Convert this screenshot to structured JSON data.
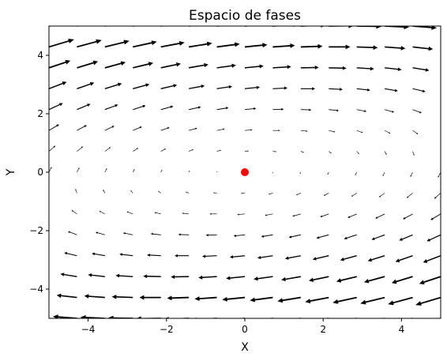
{
  "chart_data": {
    "type": "quiver",
    "title": "Espacio de fases",
    "xlabel": "X",
    "ylabel": "Y",
    "xlim": [
      -5,
      5
    ],
    "ylim": [
      -5,
      5
    ],
    "x_ticks": [
      -4,
      -2,
      0,
      2,
      4
    ],
    "y_ticks": [
      -4,
      -2,
      0,
      2,
      4
    ],
    "x_tick_labels": [
      "−4",
      "−2",
      "0",
      "2",
      "4"
    ],
    "y_tick_labels": [
      "−4",
      "−2",
      "0",
      "2",
      "4"
    ],
    "grid": false,
    "vector_field": {
      "x_range": [
        -5,
        5
      ],
      "y_range": [
        -5,
        5
      ],
      "count": 15,
      "u": "y - 0.1*x",
      "v": "-0.2*x + 0.1*y",
      "arrow_color": "#000000"
    },
    "points": [
      {
        "x": 0,
        "y": 0,
        "color": "#ff0000"
      }
    ]
  }
}
